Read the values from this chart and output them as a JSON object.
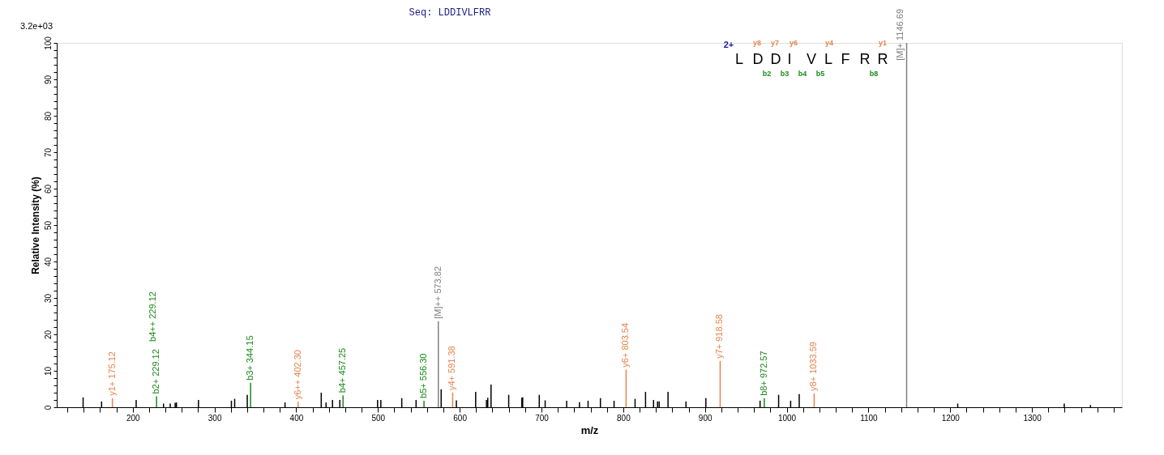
{
  "chart_data": {
    "type": "bar",
    "title": "Seq: LDDIVLFRR",
    "xlabel": "m/z",
    "ylabel": "Relative   Intensity (%)",
    "annotations": [
      "3.2e+03",
      "2+",
      "L",
      "D",
      "D",
      "I",
      "V",
      "L",
      "F",
      "R",
      "R",
      "y8",
      "y7",
      "y6",
      "y4",
      "y1",
      "b2",
      "b3",
      "b4",
      "b5",
      "b8",
      "b4++ 229.12",
      {
        "text": "y1+ 175.12",
        "x": 175.12,
        "y": 2.5
      },
      {
        "text": "y6++ 402.30",
        "x": 402.3,
        "y": 1.5
      },
      {
        "text": "y4+ 591.38",
        "x": 591.38,
        "y": 4.0
      },
      {
        "text": "y6+ 803.54",
        "x": 803.54,
        "y": 10.3
      },
      {
        "text": "y7+ 918.58",
        "x": 918.58,
        "y": 12.7
      },
      {
        "text": "y8+ 1033.59",
        "x": 1033.59,
        "y": 3.8
      },
      {
        "text": "b2+ 229.12",
        "x": 229.12,
        "y": 3.0
      },
      {
        "text": "b3+ 344.15",
        "x": 344.15,
        "y": 6.7
      },
      {
        "text": "b4+ 457.25",
        "x": 457.25,
        "y": 3.3
      },
      {
        "text": "b5+ 556.30",
        "x": 556.3,
        "y": 1.8
      },
      {
        "text": "b8+ 972.57",
        "x": 972.57,
        "y": 2.5
      },
      {
        "text": "[M]++ 573.82",
        "x": 573.82,
        "y": 23.6
      },
      {
        "text": "[M]+ 1146.69",
        "x": 1146.69,
        "y": 100
      }
    ],
    "xlim": [
      112,
      1405
    ],
    "xticks": [
      {
        "value": 120,
        "label": null
      },
      {
        "value": 140,
        "label": null
      },
      {
        "value": 160,
        "label": null
      },
      {
        "value": 180,
        "label": null
      },
      200,
      {
        "value": 220,
        "label": null
      },
      {
        "value": 240,
        "label": null
      },
      {
        "value": 260,
        "label": null
      },
      {
        "value": 280,
        "label": null
      },
      300,
      {
        "value": 320,
        "label": null
      },
      {
        "value": 340,
        "label": null
      },
      {
        "value": 360,
        "label": null
      },
      {
        "value": 380,
        "label": null
      },
      400,
      {
        "value": 420,
        "label": null
      },
      {
        "value": 440,
        "label": null
      },
      {
        "value": 460,
        "label": null
      },
      {
        "value": 480,
        "label": null
      },
      500,
      {
        "value": 520,
        "label": null
      },
      {
        "value": 540,
        "label": null
      },
      {
        "value": 560,
        "label": null
      },
      {
        "value": 580,
        "label": null
      },
      600,
      {
        "value": 620,
        "label": null
      },
      {
        "value": 640,
        "label": null
      },
      {
        "value": 660,
        "label": null
      },
      {
        "value": 680,
        "label": null
      },
      700,
      {
        "value": 720,
        "label": null
      },
      {
        "value": 740,
        "label": null
      },
      {
        "value": 760,
        "label": null
      },
      {
        "value": 780,
        "label": null
      },
      800,
      {
        "value": 820,
        "label": null
      },
      {
        "value": 840,
        "label": null
      },
      {
        "value": 860,
        "label": null
      },
      {
        "value": 880,
        "label": null
      },
      900,
      {
        "value": 920,
        "label": null
      },
      {
        "value": 940,
        "label": null
      },
      {
        "value": 960,
        "label": null
      },
      {
        "value": 980,
        "label": null
      },
      1000,
      {
        "value": 1020,
        "label": null
      },
      {
        "value": 1040,
        "label": null
      },
      {
        "value": 1060,
        "label": null
      },
      {
        "value": 1080,
        "label": null
      },
      1100,
      {
        "value": 1120,
        "label": null
      },
      {
        "value": 1140,
        "label": null
      },
      {
        "value": 1160,
        "label": null
      },
      {
        "value": 1180,
        "label": null
      },
      1200,
      {
        "value": 1220,
        "label": null
      },
      {
        "value": 1240,
        "label": null
      },
      {
        "value": 1260,
        "label": null
      },
      {
        "value": 1280,
        "label": null
      },
      1300,
      {
        "value": 1320,
        "label": null
      },
      {
        "value": 1340,
        "label": null
      },
      {
        "value": 1360,
        "label": null
      },
      {
        "value": 1380,
        "label": null
      },
      {
        "value": 1400,
        "label": null
      }
    ],
    "ylim": [
      0,
      100
    ],
    "yticks": [
      0,
      {
        "value": 2,
        "label": null
      },
      {
        "value": 4,
        "label": null
      },
      {
        "value": 6,
        "label": null
      },
      {
        "value": 8,
        "label": null
      },
      10,
      {
        "value": 12,
        "label": null
      },
      {
        "value": 14,
        "label": null
      },
      {
        "value": 16,
        "label": null
      },
      {
        "value": 18,
        "label": null
      },
      20,
      {
        "value": 22,
        "label": null
      },
      {
        "value": 24,
        "label": null
      },
      {
        "value": 26,
        "label": null
      },
      {
        "value": 28,
        "label": null
      },
      30,
      {
        "value": 32,
        "label": null
      },
      {
        "value": 34,
        "label": null
      },
      {
        "value": 36,
        "label": null
      },
      {
        "value": 38,
        "label": null
      },
      40,
      {
        "value": 42,
        "label": null
      },
      {
        "value": 44,
        "label": null
      },
      {
        "value": 46,
        "label": null
      },
      {
        "value": 48,
        "label": null
      },
      50,
      {
        "value": 52,
        "label": null
      },
      {
        "value": 54,
        "label": null
      },
      {
        "value": 56,
        "label": null
      },
      {
        "value": 58,
        "label": null
      },
      60,
      {
        "value": 62,
        "label": null
      },
      {
        "value": 64,
        "label": null
      },
      {
        "value": 66,
        "label": null
      },
      {
        "value": 68,
        "label": null
      },
      70,
      {
        "value": 72,
        "label": null
      },
      {
        "value": 74,
        "label": null
      },
      {
        "value": 76,
        "label": null
      },
      {
        "value": 78,
        "label": null
      },
      80,
      {
        "value": 82,
        "label": null
      },
      {
        "value": 84,
        "label": null
      },
      {
        "value": 86,
        "label": null
      },
      {
        "value": 88,
        "label": null
      },
      90,
      {
        "value": 92,
        "label": null
      },
      {
        "value": 94,
        "label": null
      },
      {
        "value": 96,
        "label": null
      },
      {
        "value": 98,
        "label": null
      },
      100
    ],
    "grid": false,
    "series": [
      {
        "color": "#000000",
        "x": [
          139.3,
          161.9,
          204.2,
          237.7,
          245.9,
          251.9,
          253.5,
          280.4,
          320.7,
          324.7,
          340.1,
          386.3,
          430.6,
          436.5,
          444.4,
          453.3,
          499.5,
          503.5,
          529.1,
          546.6,
          577.3,
          595.9,
          619.5,
          632.7,
          634.3,
          638.3,
          659.9,
          676.0,
          677.0,
          697.3,
          704.5,
          730.8,
          746.5,
          757.0,
          772.1,
          788.8,
          814.5,
          827.3,
          837.1,
          842.0,
          844.0,
          854.8,
          876.8,
          901.1,
          967.4,
          990.1,
          1004.8,
          1015.3,
          1209.2,
          1339.5,
          1371.6
        ],
        "values": [
          2.7,
          1.6,
          2.0,
          1.0,
          1.0,
          1.2,
          1.3,
          2.0,
          1.8,
          2.3,
          3.4,
          1.3,
          4.0,
          1.3,
          2.0,
          2.0,
          2.0,
          2.0,
          2.5,
          2.0,
          4.9,
          1.9,
          4.2,
          2.0,
          2.6,
          6.2,
          3.4,
          2.6,
          2.7,
          3.4,
          1.9,
          1.8,
          1.4,
          1.8,
          2.5,
          1.8,
          2.3,
          4.2,
          2.0,
          1.6,
          1.6,
          4.2,
          1.6,
          2.5,
          1.8,
          3.4,
          1.8,
          3.6,
          1.0,
          1.0,
          0.6
        ]
      },
      {
        "color": "#e8834b",
        "x": [
          175.12,
          402.3,
          591.38,
          803.54,
          918.58,
          1033.59
        ],
        "values": [
          2.5,
          1.5,
          4.0,
          10.3,
          12.7,
          3.8
        ]
      },
      {
        "color": "#1a8a1a",
        "x": [
          229.12,
          344.15,
          457.25,
          556.3,
          972.57
        ],
        "values": [
          3.0,
          6.7,
          3.3,
          1.8,
          2.5
        ]
      },
      {
        "color": "#808080",
        "x": [
          573.82,
          1146.69
        ],
        "values": [
          23.6,
          100
        ]
      }
    ]
  }
}
